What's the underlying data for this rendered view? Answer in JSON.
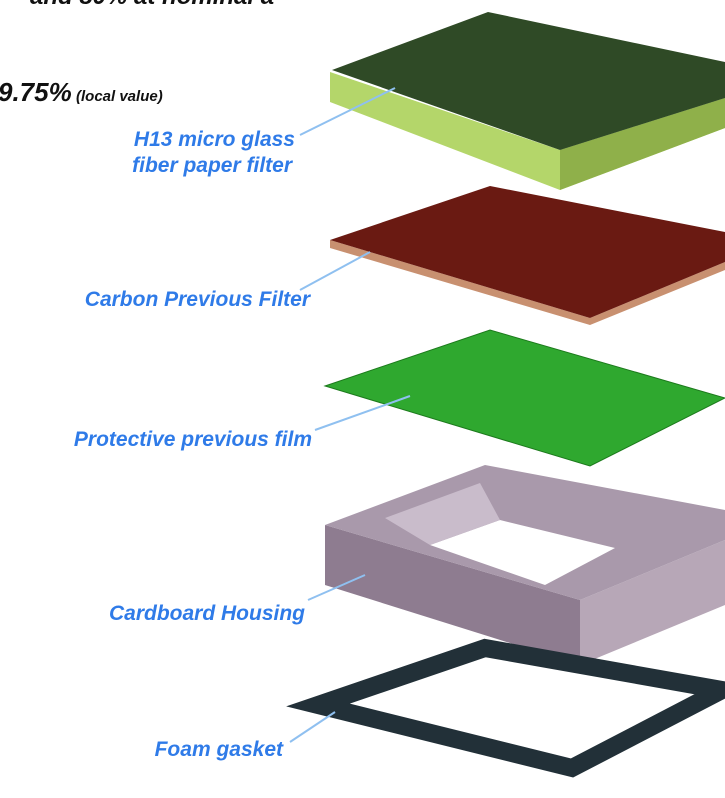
{
  "header": {
    "top_line": "and 80% at nominal a",
    "efficiency": "9.75%",
    "efficiency_note": "(local value)"
  },
  "layers": [
    {
      "label_lines": [
        "H13  micro glass",
        "fiber paper filter"
      ]
    },
    {
      "label_lines": [
        "Carbon Previous Filter"
      ]
    },
    {
      "label_lines": [
        "Protective previous film"
      ]
    },
    {
      "label_lines": [
        "Cardboard Housing"
      ]
    },
    {
      "label_lines": [
        "Foam gasket"
      ]
    }
  ]
}
